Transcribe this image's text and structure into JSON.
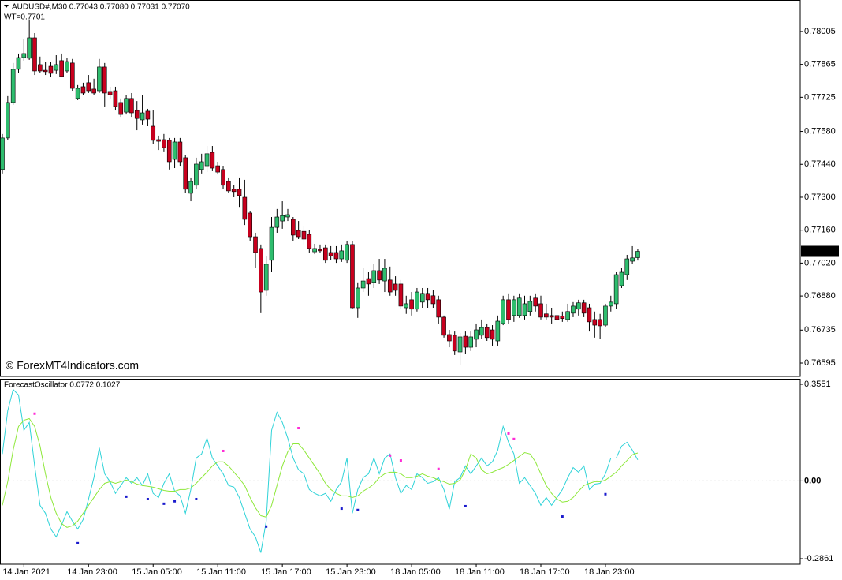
{
  "chart_data": [
    {
      "type": "candlestick",
      "title": "AUDUSD#,M30  0.77043 0.77080 0.77031 0.77070",
      "subtitle": "WT=0.7701",
      "annotation": "© ForexMT4Indicators.com",
      "up_color": "#2ebd6e",
      "down_color": "#c8001e",
      "ylim": [
        0.76538,
        0.78139
      ],
      "yticks": [
        {
          "value": 0.78005,
          "label": "0.78005"
        },
        {
          "value": 0.77865,
          "label": "0.77865"
        },
        {
          "value": 0.77725,
          "label": "0.77725"
        },
        {
          "value": 0.7758,
          "label": "0.77580"
        },
        {
          "value": 0.7744,
          "label": "0.77440"
        },
        {
          "value": 0.773,
          "label": "0.77300"
        },
        {
          "value": 0.7716,
          "label": "0.77160"
        },
        {
          "value": 0.7702,
          "label": "0.77020"
        },
        {
          "value": 0.7688,
          "label": "0.76880"
        },
        {
          "value": 0.76735,
          "label": "0.76735"
        },
        {
          "value": 0.76595,
          "label": "0.76595"
        }
      ],
      "price_label": {
        "value": 0.7707,
        "label": "0.77070"
      },
      "ohlc": [
        [
          0.77418,
          0.77569,
          0.77401,
          0.77552
        ],
        [
          0.77552,
          0.7773,
          0.77542,
          0.77703
        ],
        [
          0.77703,
          0.77871,
          0.77693,
          0.77844
        ],
        [
          0.77844,
          0.77911,
          0.7783,
          0.77894
        ],
        [
          0.77894,
          0.77971,
          0.77881,
          0.77911
        ],
        [
          0.77891,
          0.78055,
          0.77884,
          0.77978
        ],
        [
          0.77978,
          0.77998,
          0.7782,
          0.77837
        ],
        [
          0.77864,
          0.77898,
          0.77827,
          0.77837
        ],
        [
          0.7784,
          0.77877,
          0.7782,
          0.77834
        ],
        [
          0.77857,
          0.77877,
          0.7781,
          0.77827
        ],
        [
          0.7784,
          0.77904,
          0.77824,
          0.77864
        ],
        [
          0.77881,
          0.77911,
          0.7781,
          0.77814
        ],
        [
          0.77837,
          0.77894,
          0.7783,
          0.77877
        ],
        [
          0.77871,
          0.77888,
          0.77753,
          0.77763
        ],
        [
          0.7772,
          0.77777,
          0.77713,
          0.77763
        ],
        [
          0.7777,
          0.77787,
          0.77736,
          0.77743
        ],
        [
          0.77787,
          0.7782,
          0.77743,
          0.77753
        ],
        [
          0.7776,
          0.77804,
          0.77736,
          0.77743
        ],
        [
          0.77753,
          0.77888,
          0.77743,
          0.77854
        ],
        [
          0.77854,
          0.77871,
          0.77686,
          0.77743
        ],
        [
          0.7775,
          0.7777,
          0.7772,
          0.77736
        ],
        [
          0.77753,
          0.7777,
          0.77669,
          0.77686
        ],
        [
          0.77703,
          0.7772,
          0.77642,
          0.77652
        ],
        [
          0.77662,
          0.77736,
          0.77652,
          0.7772
        ],
        [
          0.7772,
          0.77743,
          0.77642,
          0.77659
        ],
        [
          0.77669,
          0.77709,
          0.77585,
          0.77635
        ],
        [
          0.77629,
          0.77736,
          0.77609,
          0.77659
        ],
        [
          0.77666,
          0.77676,
          0.77602,
          0.77632
        ],
        [
          0.77602,
          0.77669,
          0.77528,
          0.77542
        ],
        [
          0.77545,
          0.77562,
          0.77501,
          0.77538
        ],
        [
          0.77545,
          0.77569,
          0.77495,
          0.77511
        ],
        [
          0.77542,
          0.77552,
          0.77418,
          0.77451
        ],
        [
          0.77461,
          0.77552,
          0.77424,
          0.77535
        ],
        [
          0.77535,
          0.77552,
          0.77434,
          0.77451
        ],
        [
          0.77468,
          0.77478,
          0.77317,
          0.77334
        ],
        [
          0.77317,
          0.77384,
          0.77283,
          0.77367
        ],
        [
          0.77351,
          0.77468,
          0.77334,
          0.77441
        ],
        [
          0.77418,
          0.77485,
          0.77401,
          0.77451
        ],
        [
          0.77434,
          0.77518,
          0.77407,
          0.77485
        ],
        [
          0.77491,
          0.77518,
          0.77411,
          0.77424
        ],
        [
          0.77434,
          0.77451,
          0.77397,
          0.77407
        ],
        [
          0.77418,
          0.77434,
          0.77334,
          0.77351
        ],
        [
          0.77367,
          0.77384,
          0.77317,
          0.77327
        ],
        [
          0.77334,
          0.77351,
          0.773,
          0.77324
        ],
        [
          0.77334,
          0.77384,
          0.77259,
          0.77307
        ],
        [
          0.773,
          0.77374,
          0.77182,
          0.77206
        ],
        [
          0.77233,
          0.7724,
          0.77115,
          0.77132
        ],
        [
          0.77132,
          0.77149,
          0.76998,
          0.77065
        ],
        [
          0.77082,
          0.77099,
          0.76807,
          0.76897
        ],
        [
          0.76904,
          0.77048,
          0.76881,
          0.77015
        ],
        [
          0.77032,
          0.77216,
          0.76981,
          0.77172
        ],
        [
          0.77172,
          0.7725,
          0.77149,
          0.77216
        ],
        [
          0.77199,
          0.77283,
          0.77166,
          0.77222
        ],
        [
          0.77216,
          0.7725,
          0.77199,
          0.77226
        ],
        [
          0.77206,
          0.77216,
          0.77115,
          0.77139
        ],
        [
          0.77159,
          0.77199,
          0.77122,
          0.77132
        ],
        [
          0.77155,
          0.77176,
          0.77099,
          0.77122
        ],
        [
          0.77142,
          0.77159,
          0.77065,
          0.77082
        ],
        [
          0.77068,
          0.77102,
          0.77058,
          0.77082
        ],
        [
          0.77078,
          0.77099,
          0.77065,
          0.77072
        ],
        [
          0.77085,
          0.77099,
          0.77021,
          0.77032
        ],
        [
          0.77065,
          0.77092,
          0.77032,
          0.77051
        ],
        [
          0.77065,
          0.77092,
          0.77021,
          0.77038
        ],
        [
          0.77038,
          0.77099,
          0.77025,
          0.77072
        ],
        [
          0.77032,
          0.77115,
          0.77021,
          0.77099
        ],
        [
          0.77099,
          0.77115,
          0.76824,
          0.7683
        ],
        [
          0.7683,
          0.76938,
          0.76787,
          0.76914
        ],
        [
          0.76914,
          0.76998,
          0.76897,
          0.76944
        ],
        [
          0.76954,
          0.76981,
          0.76881,
          0.76931
        ],
        [
          0.76938,
          0.77015,
          0.76914,
          0.76988
        ],
        [
          0.76988,
          0.77038,
          0.76931,
          0.76948
        ],
        [
          0.76944,
          0.77038,
          0.76897,
          0.76998
        ],
        [
          0.76948,
          0.77005,
          0.76881,
          0.76897
        ],
        [
          0.76931,
          0.76964,
          0.76881,
          0.76904
        ],
        [
          0.76931,
          0.76948,
          0.76824,
          0.76837
        ],
        [
          0.7683,
          0.76881,
          0.76804,
          0.76847
        ],
        [
          0.76864,
          0.76897,
          0.76797,
          0.76824
        ],
        [
          0.76824,
          0.76914,
          0.76814,
          0.76897
        ],
        [
          0.76854,
          0.76914,
          0.7683,
          0.76891
        ],
        [
          0.76891,
          0.76914,
          0.7683,
          0.76864
        ],
        [
          0.76881,
          0.76904,
          0.7683,
          0.76847
        ],
        [
          0.76864,
          0.76881,
          0.76763,
          0.7679
        ],
        [
          0.7679,
          0.76797,
          0.76703,
          0.76713
        ],
        [
          0.76716,
          0.76736,
          0.76662,
          0.76689
        ],
        [
          0.76713,
          0.76729,
          0.76629,
          0.76646
        ],
        [
          0.76642,
          0.76723,
          0.76588,
          0.76706
        ],
        [
          0.76709,
          0.76729,
          0.76635,
          0.76662
        ],
        [
          0.76662,
          0.76729,
          0.76646,
          0.76706
        ],
        [
          0.76696,
          0.76763,
          0.76662,
          0.76736
        ],
        [
          0.76713,
          0.7678,
          0.76696,
          0.76746
        ],
        [
          0.76746,
          0.76763,
          0.76689,
          0.76703
        ],
        [
          0.76736,
          0.76756,
          0.76669,
          0.76696
        ],
        [
          0.76689,
          0.76797,
          0.76669,
          0.76773
        ],
        [
          0.76763,
          0.76881,
          0.76756,
          0.76864
        ],
        [
          0.76864,
          0.76891,
          0.76763,
          0.7678
        ],
        [
          0.76797,
          0.76881,
          0.7677,
          0.76864
        ],
        [
          0.76797,
          0.76891,
          0.76787,
          0.76871
        ],
        [
          0.76797,
          0.76881,
          0.7678,
          0.76847
        ],
        [
          0.76814,
          0.76881,
          0.76797,
          0.76857
        ],
        [
          0.76871,
          0.76891,
          0.76814,
          0.76837
        ],
        [
          0.76847,
          0.76881,
          0.7678,
          0.7679
        ],
        [
          0.76804,
          0.76847,
          0.7678,
          0.7679
        ],
        [
          0.76797,
          0.7683,
          0.76763,
          0.7679
        ],
        [
          0.76797,
          0.76814,
          0.7677,
          0.7678
        ],
        [
          0.76794,
          0.76814,
          0.7677,
          0.76784
        ],
        [
          0.7678,
          0.76847,
          0.7677,
          0.76814
        ],
        [
          0.76807,
          0.76854,
          0.7679,
          0.76837
        ],
        [
          0.76824,
          0.76864,
          0.76797,
          0.76851
        ],
        [
          0.76851,
          0.76864,
          0.7679,
          0.76807
        ],
        [
          0.7683,
          0.76847,
          0.76729,
          0.7677
        ],
        [
          0.7678,
          0.76814,
          0.76703,
          0.76756
        ],
        [
          0.7678,
          0.76804,
          0.76696,
          0.76753
        ],
        [
          0.76756,
          0.76847,
          0.76746,
          0.76837
        ],
        [
          0.76837,
          0.76881,
          0.76814,
          0.76854
        ],
        [
          0.76847,
          0.76981,
          0.76824,
          0.76971
        ],
        [
          0.76924,
          0.76998,
          0.76914,
          0.76981
        ],
        [
          0.76971,
          0.77055,
          0.76948,
          0.77038
        ],
        [
          0.77028,
          0.77092,
          0.77018,
          0.77042
        ],
        [
          0.77043,
          0.7708,
          0.77031,
          0.7707
        ]
      ]
    },
    {
      "type": "oscillator",
      "title": "ForecastOscillator 0.0772 0.1027",
      "ylim": [
        -0.3064,
        0.3754
      ],
      "yticks": [
        0.3551,
        {
          "value": 0,
          "label": "0.00"
        },
        -0.2861
      ],
      "zero_line": true,
      "xticks": [
        {
          "value": 4,
          "label": "14 Jan 2021"
        },
        {
          "value": 16,
          "label": "14 Jan 23:00"
        },
        {
          "value": 28,
          "label": "15 Jan 05:00"
        },
        {
          "value": 40,
          "label": "15 Jan 11:00"
        },
        {
          "value": 52,
          "label": "15 Jan 17:00"
        },
        {
          "value": 64,
          "label": "15 Jan 23:00"
        },
        {
          "value": 76,
          "label": "18 Jan 05:00"
        },
        {
          "value": 88,
          "label": "18 Jan 11:00"
        },
        {
          "value": 100,
          "label": "18 Jan 17:00"
        },
        {
          "value": 112,
          "label": "18 Jan 23:00"
        }
      ],
      "series": [
        {
          "color": "#2fd3d8",
          "values": [
            0.099,
            0.258,
            0.336,
            0.316,
            0.186,
            0.215,
            0.055,
            -0.09,
            -0.119,
            -0.177,
            -0.206,
            -0.162,
            -0.113,
            -0.148,
            -0.177,
            -0.142,
            -0.067,
            0.012,
            0.122,
            0.026,
            -0.003,
            -0.046,
            -0.017,
            0.012,
            -0.009,
            0.012,
            -0.017,
            0.026,
            -0.046,
            -0.061,
            -0.009,
            0.026,
            -0.038,
            -0.055,
            -0.119,
            -0.032,
            0.084,
            0.099,
            0.157,
            0.084,
            0.055,
            0.026,
            -0.017,
            -0.023,
            -0.061,
            -0.119,
            -0.177,
            -0.206,
            -0.264,
            -0.148,
            0.186,
            0.252,
            0.215,
            0.157,
            0.084,
            0.041,
            0.026,
            -0.032,
            -0.046,
            -0.055,
            -0.046,
            -0.075,
            -0.032,
            -0.003,
            0.084,
            -0.119,
            -0.032,
            0.012,
            0.026,
            0.084,
            0.026,
            0.084,
            0.099,
            0.012,
            -0.046,
            -0.017,
            -0.032,
            0.026,
            0.012,
            -0.009,
            -0.003,
            0.012,
            -0.032,
            -0.104,
            -0.003,
            0.012,
            0.055,
            0.026,
            0.055,
            0.084,
            0.055,
            0.07,
            0.113,
            0.2,
            0.142,
            0.099,
            -0.009,
            0.012,
            -0.017,
            -0.046,
            -0.09,
            -0.061,
            -0.09,
            -0.061,
            -0.032,
            0.012,
            0.049,
            0.032,
            0.055,
            -0.032,
            -0.012,
            -0.009,
            0.026,
            0.084,
            0.084,
            0.128,
            0.142,
            0.113,
            0.0772
          ]
        },
        {
          "color": "#8ee83a",
          "values": [
            -0.09,
            -0.003,
            0.113,
            0.2,
            0.223,
            0.229,
            0.2,
            0.128,
            0.026,
            -0.061,
            -0.119,
            -0.157,
            -0.171,
            -0.165,
            -0.148,
            -0.119,
            -0.09,
            -0.061,
            -0.032,
            -0.009,
            -0.003,
            -0.009,
            -0.003,
            0.003,
            -0.003,
            -0.012,
            -0.017,
            -0.02,
            -0.023,
            -0.029,
            -0.035,
            -0.038,
            -0.038,
            -0.032,
            -0.032,
            -0.026,
            -0.009,
            0.012,
            0.032,
            0.055,
            0.07,
            0.07,
            0.055,
            0.032,
            0.009,
            -0.017,
            -0.061,
            -0.099,
            -0.128,
            -0.133,
            -0.09,
            -0.017,
            0.055,
            0.107,
            0.136,
            0.136,
            0.113,
            0.084,
            0.055,
            0.026,
            -0.009,
            -0.032,
            -0.046,
            -0.055,
            -0.055,
            -0.061,
            -0.055,
            -0.038,
            -0.026,
            -0.012,
            0.012,
            0.026,
            0.032,
            0.032,
            0.026,
            0.012,
            0.012,
            0.017,
            0.026,
            0.017,
            0.012,
            0.003,
            -0.003,
            -0.012,
            -0.009,
            0.003,
            0.041,
            0.099,
            0.084,
            0.041,
            0.026,
            0.032,
            0.041,
            0.049,
            0.061,
            0.075,
            0.09,
            0.104,
            0.099,
            0.07,
            0.026,
            -0.017,
            -0.046,
            -0.067,
            -0.078,
            -0.075,
            -0.061,
            -0.038,
            -0.017,
            -0.009,
            -0.003,
            -0.003,
            0.003,
            0.017,
            0.032,
            0.055,
            0.075,
            0.096,
            0.1027
          ]
        }
      ],
      "points": [
        {
          "color": "#ff2bd6",
          "x": [
            6,
            41,
            55,
            72,
            74,
            81,
            94,
            95
          ],
          "values": [
            0.247,
            0.11,
            0.194,
            0.093,
            0.075,
            0.044,
            0.174,
            0.154
          ]
        },
        {
          "color": "#1a1acd",
          "x": [
            14,
            23,
            27,
            30,
            32,
            36,
            49,
            63,
            66,
            86,
            104,
            112
          ],
          "values": [
            -0.229,
            -0.058,
            -0.067,
            -0.084,
            -0.075,
            -0.067,
            -0.168,
            -0.102,
            -0.107,
            -0.093,
            -0.131,
            -0.049
          ]
        }
      ]
    }
  ]
}
